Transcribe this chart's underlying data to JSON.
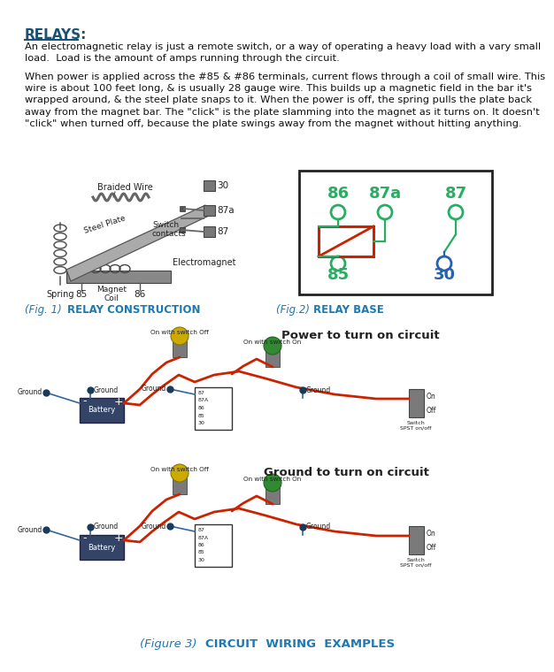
{
  "bg_color": "#ffffff",
  "title_color": "#1a5276",
  "text_color": "#111111",
  "accent_blue": "#1a7ab5",
  "green": "#27ae60",
  "relay_red": "#cc2200",
  "body_font": 8.2,
  "title_font": 11.0,
  "label_font": 8.5,
  "paragraph1": "An electromagnetic relay is just a remote switch, or a way of operating a heavy load with a vary small\nload.  Load is the amount of amps running through the circuit.",
  "paragraph2": "When power is applied across the #85 & #86 terminals, current flows through a coil of small wire. This\nwire is about 100 feet long, & is usually 28 gauge wire. This builds up a magnetic field in the bar it's\nwrapped around, & the steel plate snaps to it. When the power is off, the spring pulls the plate back\naway from the magnet bar. The \"click\" is the plate slamming into the magnet as it turns on. It doesn't\n\"click\" when turned off, because the plate swings away from the magnet without hitting anything."
}
